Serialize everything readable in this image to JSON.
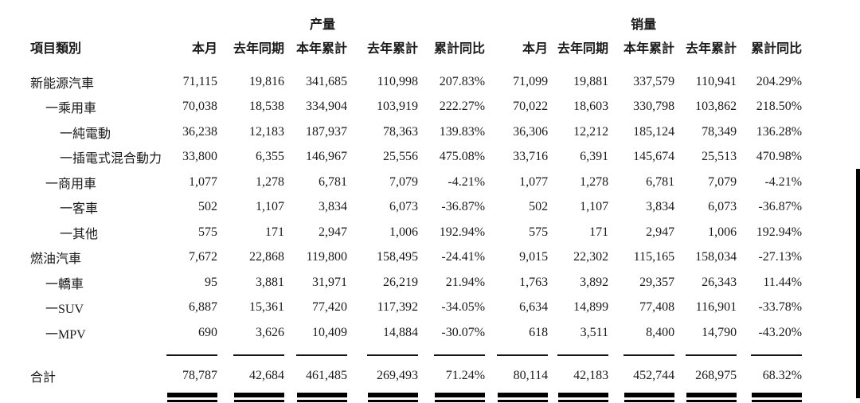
{
  "page": {
    "background_color": "#ffffff",
    "text_color": "#1a1a1a",
    "rule_color": "#000000"
  },
  "table": {
    "group_headers": {
      "production": "产量",
      "sales": "销量"
    },
    "category_header": "項目類別",
    "metric_headers": [
      "本月",
      "去年同期",
      "本年累計",
      "去年累計",
      "累計同比"
    ],
    "rows": [
      {
        "label": "新能源汽車",
        "indent": 0,
        "values": [
          "71,115",
          "19,816",
          "341,685",
          "110,998",
          "207.83%",
          "71,099",
          "19,881",
          "337,579",
          "110,941",
          "204.29%"
        ]
      },
      {
        "label": "一乘用車",
        "indent": 1,
        "values": [
          "70,038",
          "18,538",
          "334,904",
          "103,919",
          "222.27%",
          "70,022",
          "18,603",
          "330,798",
          "103,862",
          "218.50%"
        ]
      },
      {
        "label": "一純電動",
        "indent": 2,
        "values": [
          "36,238",
          "12,183",
          "187,937",
          "78,363",
          "139.83%",
          "36,306",
          "12,212",
          "185,124",
          "78,349",
          "136.28%"
        ]
      },
      {
        "label": "一插電式混合動力",
        "indent": 2,
        "values": [
          "33,800",
          "6,355",
          "146,967",
          "25,556",
          "475.08%",
          "33,716",
          "6,391",
          "145,674",
          "25,513",
          "470.98%"
        ]
      },
      {
        "label": "一商用車",
        "indent": 1,
        "values": [
          "1,077",
          "1,278",
          "6,781",
          "7,079",
          "-4.21%",
          "1,077",
          "1,278",
          "6,781",
          "7,079",
          "-4.21%"
        ]
      },
      {
        "label": "一客車",
        "indent": 2,
        "values": [
          "502",
          "1,107",
          "3,834",
          "6,073",
          "-36.87%",
          "502",
          "1,107",
          "3,834",
          "6,073",
          "-36.87%"
        ]
      },
      {
        "label": "一其他",
        "indent": 2,
        "values": [
          "575",
          "171",
          "2,947",
          "1,006",
          "192.94%",
          "575",
          "171",
          "2,947",
          "1,006",
          "192.94%"
        ]
      },
      {
        "label": "燃油汽車",
        "indent": 0,
        "values": [
          "7,672",
          "22,868",
          "119,800",
          "158,495",
          "-24.41%",
          "9,015",
          "22,302",
          "115,165",
          "158,034",
          "-27.13%"
        ]
      },
      {
        "label": "一轎車",
        "indent": 1,
        "values": [
          "95",
          "3,881",
          "31,971",
          "26,219",
          "21.94%",
          "1,763",
          "3,892",
          "29,357",
          "26,343",
          "11.44%"
        ]
      },
      {
        "label": "一SUV",
        "indent": 1,
        "values": [
          "6,887",
          "15,361",
          "77,420",
          "117,392",
          "-34.05%",
          "6,634",
          "14,899",
          "77,408",
          "116,901",
          "-33.78%"
        ]
      },
      {
        "label": "一MPV",
        "indent": 1,
        "values": [
          "690",
          "3,626",
          "10,409",
          "14,884",
          "-30.07%",
          "618",
          "3,511",
          "8,400",
          "14,790",
          "-43.20%"
        ]
      }
    ],
    "total_row": {
      "label": "合計",
      "values": [
        "78,787",
        "42,684",
        "461,485",
        "269,493",
        "71.24%",
        "80,114",
        "42,183",
        "452,744",
        "268,975",
        "68.32%"
      ]
    }
  }
}
